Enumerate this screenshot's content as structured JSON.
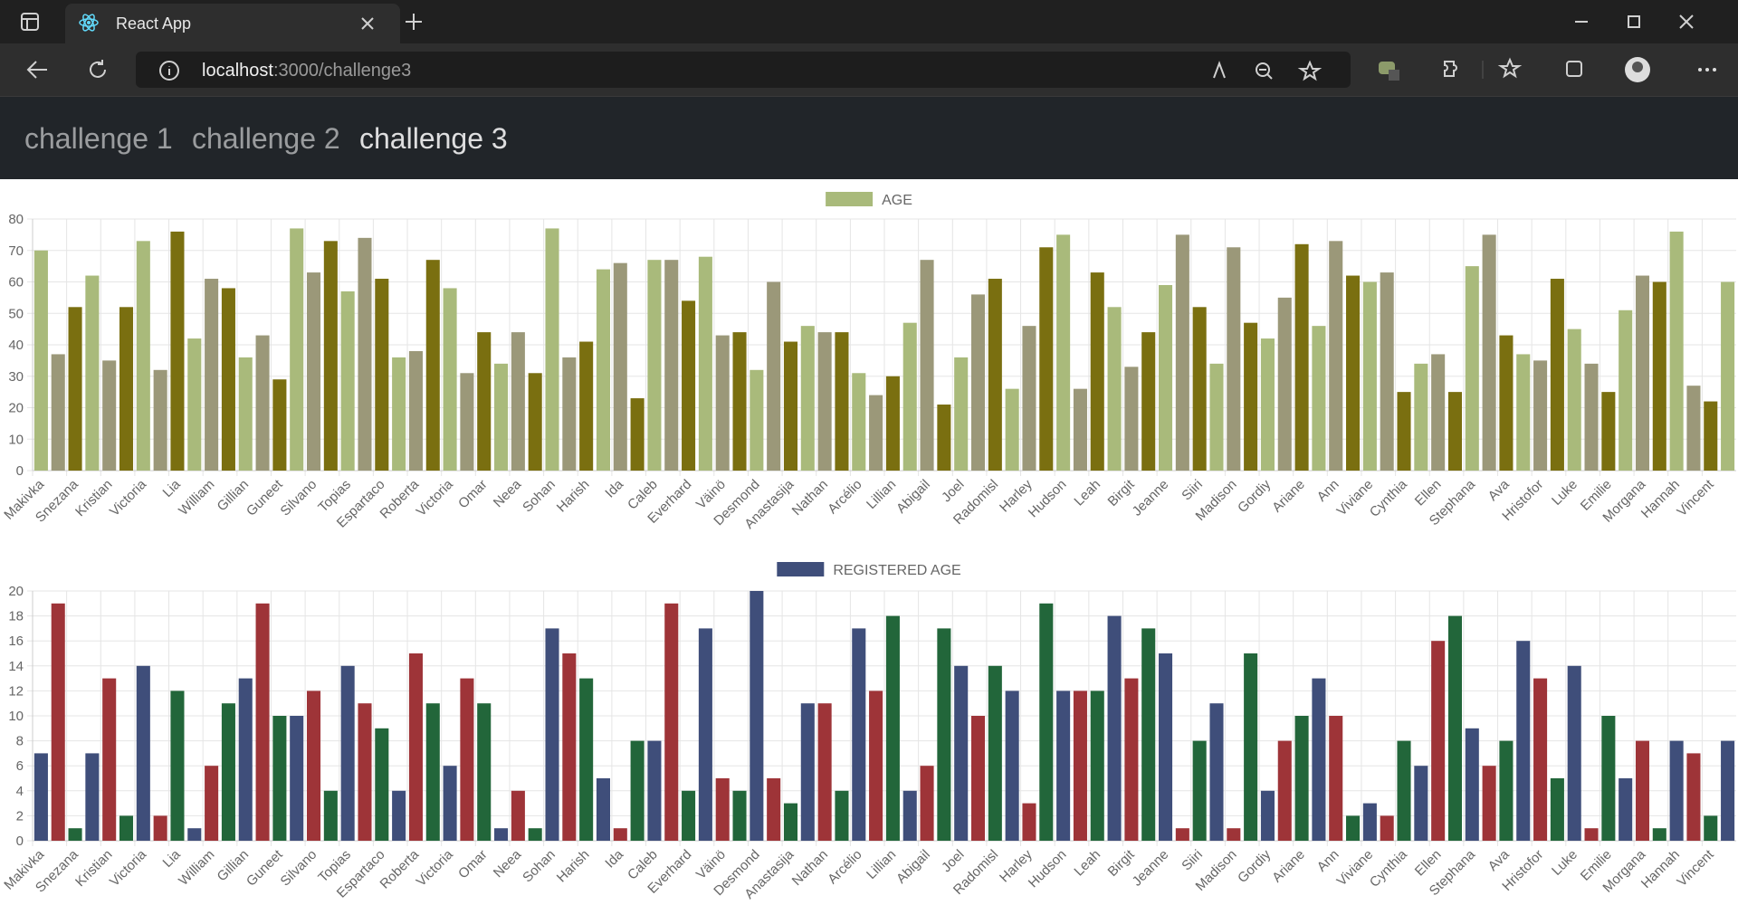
{
  "browser": {
    "tab_title": "React App",
    "url_host": "localhost",
    "url_path": ":3000/challenge3"
  },
  "nav": {
    "links": [
      "challenge 1",
      "challenge 2",
      "challenge 3"
    ],
    "active": 2
  },
  "chart_data": [
    {
      "type": "bar",
      "categories": [
        "Makivka",
        null,
        "Snezana",
        null,
        "Kristian",
        null,
        "Victoria",
        null,
        "Lia",
        null,
        "William",
        null,
        "Gillian",
        null,
        "Guneet",
        null,
        "Silvano",
        null,
        "Topias",
        null,
        "Espartaco",
        null,
        "Roberta",
        null,
        "Victoria",
        null,
        "Omar",
        null,
        "Neea",
        null,
        "Sohan",
        null,
        "Harish",
        null,
        "Ida",
        null,
        "Caleb",
        null,
        "Everhard",
        null,
        "Väinö",
        null,
        "Desmond",
        null,
        "Anastasija",
        null,
        "Nathan",
        null,
        "Arcélio",
        null,
        "Lillian",
        null,
        "Abigail",
        null,
        "Joel",
        null,
        "Radomisl",
        null,
        "Harley",
        null,
        "Hudson",
        null,
        "Leah",
        null,
        "Birgit",
        null,
        "Jeanne",
        null,
        "Siiri",
        null,
        "Madison",
        null,
        "Gordiy",
        null,
        "Ariane",
        null,
        "Ann",
        null,
        "Viviane",
        null,
        "Cynthia",
        null,
        "Ellen",
        null,
        "Stephana",
        null,
        "Ava",
        null,
        "Hristofor",
        null,
        "Luke",
        null,
        "Emilie",
        null,
        "Morgana",
        null,
        "Hannah",
        null,
        "Vincent",
        null
      ],
      "series": [
        {
          "name": "AGE",
          "color": "#a9ba7b",
          "values": [
            70,
            37,
            52,
            62,
            35,
            52,
            73,
            32,
            76,
            42,
            61,
            58,
            36,
            43,
            29,
            77,
            63,
            73,
            57,
            74,
            61,
            36,
            38,
            67,
            58,
            31,
            44,
            34,
            44,
            31,
            77,
            36,
            41,
            64,
            66,
            23,
            67,
            67,
            54,
            68,
            43,
            44,
            32,
            60,
            41,
            46,
            44,
            44,
            31,
            24,
            30,
            47,
            67,
            21,
            36,
            56,
            61,
            26,
            46,
            71,
            75,
            26,
            63,
            52,
            33,
            44,
            59,
            75,
            52,
            34,
            71,
            47,
            42,
            55,
            72,
            46,
            73,
            62,
            60,
            63,
            25,
            34,
            37,
            25,
            65,
            75,
            43,
            37,
            35,
            61,
            45,
            34,
            25,
            51,
            62,
            60,
            76,
            27,
            22,
            60
          ]
        }
      ],
      "bar_colors": [
        "#a9ba7b",
        "#9b9879",
        "#7a6f10"
      ],
      "ylim": [
        0,
        80
      ],
      "yticks": [
        0,
        10,
        20,
        30,
        40,
        50,
        60,
        70,
        80
      ],
      "grid": true,
      "legend": "top"
    },
    {
      "type": "bar",
      "categories": [
        "Makivka",
        null,
        "Snezana",
        null,
        "Kristian",
        null,
        "Victoria",
        null,
        "Lia",
        null,
        "William",
        null,
        "Gillian",
        null,
        "Guneet",
        null,
        "Silvano",
        null,
        "Topias",
        null,
        "Espartaco",
        null,
        "Roberta",
        null,
        "Victoria",
        null,
        "Omar",
        null,
        "Neea",
        null,
        "Sohan",
        null,
        "Harish",
        null,
        "Ida",
        null,
        "Caleb",
        null,
        "Everhard",
        null,
        "Väinö",
        null,
        "Desmond",
        null,
        "Anastasija",
        null,
        "Nathan",
        null,
        "Arcélio",
        null,
        "Lillian",
        null,
        "Abigail",
        null,
        "Joel",
        null,
        "Radomisl",
        null,
        "Harley",
        null,
        "Hudson",
        null,
        "Leah",
        null,
        "Birgit",
        null,
        "Jeanne",
        null,
        "Siiri",
        null,
        "Madison",
        null,
        "Gordiy",
        null,
        "Ariane",
        null,
        "Ann",
        null,
        "Viviane",
        null,
        "Cynthia",
        null,
        "Ellen",
        null,
        "Stephana",
        null,
        "Ava",
        null,
        "Hristofor",
        null,
        "Luke",
        null,
        "Emilie",
        null,
        "Morgana",
        null,
        "Hannah",
        null,
        "Vincent",
        null
      ],
      "series": [
        {
          "name": "REGISTERED AGE",
          "color": "#3f4e7a",
          "values": [
            7,
            19,
            1,
            7,
            13,
            2,
            14,
            2,
            12,
            1,
            6,
            11,
            13,
            19,
            10,
            10,
            12,
            4,
            14,
            11,
            9,
            4,
            15,
            11,
            6,
            13,
            11,
            1,
            4,
            1,
            17,
            15,
            13,
            5,
            1,
            8,
            8,
            19,
            4,
            17,
            5,
            4,
            20,
            5,
            3,
            11,
            11,
            4,
            17,
            12,
            18,
            4,
            6,
            17,
            14,
            10,
            14,
            12,
            3,
            19,
            12,
            12,
            12,
            18,
            13,
            17,
            15,
            1,
            8,
            11,
            1,
            15,
            4,
            8,
            10,
            13,
            10,
            2,
            3,
            2,
            8,
            6,
            16,
            18,
            9,
            6,
            8,
            16,
            13,
            5,
            14,
            1,
            10,
            5,
            8,
            1,
            8,
            7,
            2,
            8
          ]
        }
      ],
      "bar_colors": [
        "#3f4e7a",
        "#9e3438",
        "#22663a"
      ],
      "ylim": [
        0,
        20
      ],
      "yticks": [
        0,
        2,
        4,
        6,
        8,
        10,
        12,
        14,
        16,
        18,
        20
      ],
      "grid": true,
      "legend": "top"
    }
  ]
}
